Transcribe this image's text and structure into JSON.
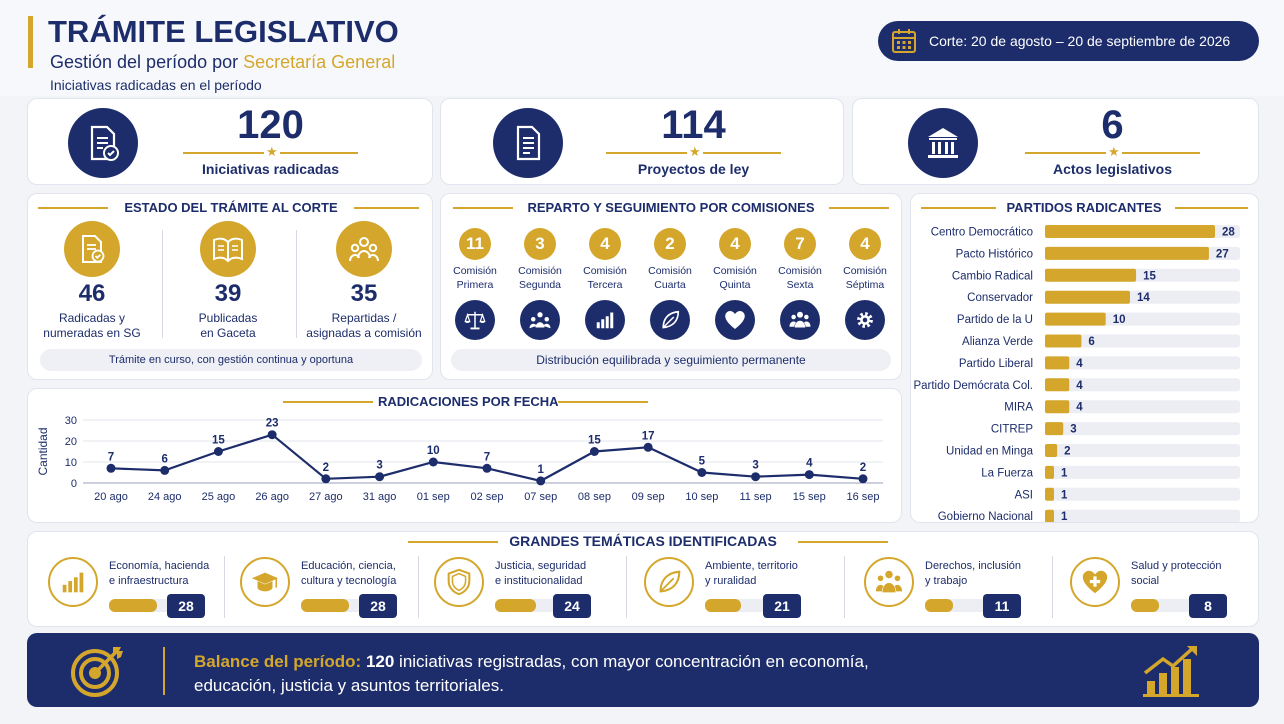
{
  "header": {
    "title": "TRÁMITE LEGISLATIVO",
    "subtitle_prefix": "Gestión del período por ",
    "subtitle_highlight": "Secretaría General",
    "caption": "Iniciativas radicadas en el período",
    "cut_label": "Corte: 20 de agosto – 20 de septiembre de 2026"
  },
  "kpis": [
    {
      "value": "120",
      "label": "Iniciativas radicadas",
      "icon": "document-check-icon"
    },
    {
      "value": "114",
      "label": "Proyectos de ley",
      "icon": "document-icon"
    },
    {
      "value": "6",
      "label": "Actos legislativos",
      "icon": "institution-icon"
    }
  ],
  "estado": {
    "title": "ESTADO DEL TRÁMITE AL CORTE",
    "items": [
      {
        "value": "46",
        "line1": "Radicadas y",
        "line2": "numeradas en SG",
        "icon": "document-check-icon"
      },
      {
        "value": "39",
        "line1": "Publicadas",
        "line2": "en Gaceta",
        "icon": "open-book-icon"
      },
      {
        "value": "35",
        "line1": "Repartidas /",
        "line2": "asignadas a comisión",
        "icon": "people-group-icon"
      }
    ],
    "footer": "Trámite en curso, con gestión continua y oportuna"
  },
  "reparto": {
    "title": "REPARTO Y SEGUIMIENTO POR COMISIONES",
    "items": [
      {
        "value": "11",
        "line1": "Comisión",
        "line2": "Primera",
        "icon": "scales-icon"
      },
      {
        "value": "3",
        "line1": "Comisión",
        "line2": "Segunda",
        "icon": "people-network-icon"
      },
      {
        "value": "4",
        "line1": "Comisión",
        "line2": "Tercera",
        "icon": "bar-chart-icon"
      },
      {
        "value": "2",
        "line1": "Comisión",
        "line2": "Cuarta",
        "icon": "leaf-icon"
      },
      {
        "value": "4",
        "line1": "Comisión",
        "line2": "Quinta",
        "icon": "heart-plus-icon"
      },
      {
        "value": "7",
        "line1": "Comisión",
        "line2": "Sexta",
        "icon": "people-icon"
      },
      {
        "value": "4",
        "line1": "Comisión",
        "line2": "Séptima",
        "icon": "gear-icon"
      }
    ],
    "footer": "Distribución equilibrada y seguimiento permanente"
  },
  "partidos": {
    "title": "PARTIDOS RADICANTES",
    "bar_color": "#d4a72c",
    "track_color": "#eceef4"
  },
  "linechart": {
    "title": "RADICACIONES POR FECHA",
    "line_color": "#1d2d6b"
  },
  "tematicas": {
    "title": "GRANDES TEMÁTICAS IDENTIFICADAS",
    "items": [
      {
        "line1": "Economía, hacienda",
        "line2": "e infraestructura",
        "value": "28",
        "share": 0.28,
        "icon": "bar-chart-icon"
      },
      {
        "line1": "Educación, ciencia,",
        "line2": "cultura y tecnología",
        "value": "28",
        "share": 0.28,
        "icon": "graduation-cap-icon"
      },
      {
        "line1": "Justicia, seguridad",
        "line2": "e institucionalidad",
        "value": "24",
        "share": 0.24,
        "icon": "shield-icon"
      },
      {
        "line1": "Ambiente, territorio",
        "line2": "y ruralidad",
        "value": "21",
        "share": 0.21,
        "icon": "leaf-icon"
      },
      {
        "line1": "Derechos, inclusión",
        "line2": "y trabajo",
        "value": "11",
        "share": 0.11,
        "icon": "people-group-icon"
      },
      {
        "line1": "Salud y protección",
        "line2": "social",
        "value": "8",
        "share": 0.08,
        "icon": "heart-plus-icon"
      }
    ]
  },
  "balance": {
    "label": "Balance del período:",
    "number": "120",
    "text1": " iniciativas registradas, con mayor concentración en economía,",
    "text2": "educación, justicia y asuntos territoriales.",
    "icon_left": "target-icon",
    "icon_right": "growth-chart-icon"
  },
  "colors": {
    "navy": "#1d2d6b",
    "gold": "#d4a72c",
    "background": "#f3f4f8"
  },
  "chart_data": [
    {
      "type": "line",
      "title": "RADICACIONES POR FECHA",
      "ylabel": "Cantidad",
      "xlabel": "",
      "ylim": [
        0,
        30
      ],
      "yticks": [
        0,
        10,
        20,
        30
      ],
      "grid": true,
      "categories": [
        "20 ago",
        "24 ago",
        "25 ago",
        "26 ago",
        "27 ago",
        "31 ago",
        "01 sep",
        "02 sep",
        "07 sep",
        "08 sep",
        "09 sep",
        "10 sep",
        "11 sep",
        "15 sep",
        "16 sep"
      ],
      "values": [
        7,
        6,
        15,
        23,
        2,
        3,
        10,
        7,
        1,
        15,
        17,
        5,
        3,
        4,
        2
      ]
    },
    {
      "type": "bar",
      "orientation": "horizontal",
      "title": "PARTIDOS RADICANTES",
      "categories": [
        "Centro Democrático",
        "Pacto Histórico",
        "Cambio Radical",
        "Conservador",
        "Partido de la U",
        "Alianza Verde",
        "Partido Liberal",
        "Partido Demócrata Col.",
        "MIRA",
        "CITREP",
        "Unidad en Minga",
        "La Fuerza",
        "ASI",
        "Gobierno Nacional"
      ],
      "values": [
        28,
        27,
        15,
        14,
        10,
        6,
        4,
        4,
        4,
        3,
        2,
        1,
        1,
        1
      ]
    }
  ]
}
